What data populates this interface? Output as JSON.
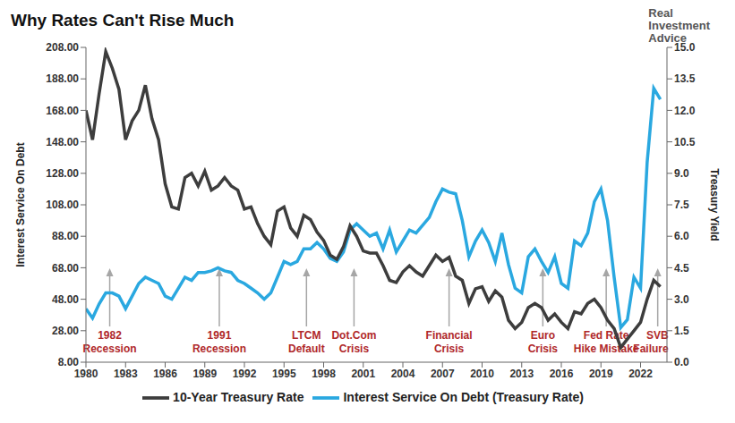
{
  "chart_data": {
    "type": "line",
    "title": "Why Rates Can't Rise Much",
    "logo": [
      "Real",
      "Investment",
      "Advice"
    ],
    "y_label": "Interest Service On Debt",
    "y2_label": "Treasury Yield",
    "grid": false,
    "legend": "bottom",
    "x": [
      1980,
      1980.5,
      1981,
      1981.5,
      1982,
      1982.5,
      1983,
      1983.5,
      1984,
      1984.5,
      1985,
      1985.5,
      1986,
      1986.5,
      1987,
      1987.5,
      1988,
      1988.5,
      1989,
      1989.5,
      1990,
      1990.5,
      1991,
      1991.5,
      1992,
      1992.5,
      1993,
      1993.5,
      1994,
      1994.5,
      1995,
      1995.5,
      1996,
      1996.5,
      1997,
      1997.5,
      1998,
      1998.5,
      1999,
      1999.5,
      2000,
      2000.5,
      2001,
      2001.5,
      2002,
      2002.5,
      2003,
      2003.5,
      2004,
      2004.5,
      2005,
      2005.5,
      2006,
      2006.5,
      2007,
      2007.5,
      2008,
      2008.5,
      2009,
      2009.5,
      2010,
      2010.5,
      2011,
      2011.5,
      2012,
      2012.5,
      2013,
      2013.5,
      2014,
      2014.5,
      2015,
      2015.5,
      2016,
      2016.5,
      2017,
      2017.5,
      2018,
      2018.5,
      2019,
      2019.5,
      2020,
      2020.5,
      2021,
      2021.5,
      2022,
      2022.5,
      2023,
      2023.5
    ],
    "series": [
      {
        "name": "Interest Service On Debt (Treasury Rate)",
        "color": "#2aa8e0",
        "values": [
          42,
          36,
          45,
          52,
          52,
          50,
          42,
          50,
          58,
          62,
          60,
          58,
          50,
          48,
          55,
          62,
          60,
          65,
          65,
          66,
          68,
          66,
          65,
          60,
          58,
          55,
          52,
          48,
          52,
          62,
          72,
          70,
          72,
          80,
          80,
          84,
          80,
          74,
          72,
          78,
          92,
          96,
          92,
          88,
          90,
          80,
          92,
          78,
          85,
          92,
          90,
          95,
          100,
          110,
          118,
          116,
          115,
          98,
          75,
          85,
          92,
          84,
          72,
          90,
          70,
          55,
          52,
          75,
          80,
          72,
          65,
          75,
          58,
          55,
          85,
          82,
          90,
          110,
          118,
          98,
          62,
          30,
          35,
          62,
          55,
          135,
          182,
          175
        ]
      },
      {
        "name": "10-Year Treasury Rate",
        "color": "#3d3d3d",
        "axis": "y2",
        "values": [
          12.0,
          10.6,
          12.8,
          14.8,
          14.0,
          13.0,
          10.6,
          11.5,
          12.0,
          13.2,
          11.6,
          10.6,
          8.5,
          7.4,
          7.3,
          8.8,
          9.0,
          8.4,
          9.1,
          8.2,
          8.4,
          8.8,
          8.4,
          8.2,
          7.3,
          7.4,
          6.6,
          6.0,
          5.6,
          7.2,
          7.4,
          6.4,
          6.0,
          7.0,
          6.8,
          6.2,
          5.8,
          5.1,
          4.9,
          5.5,
          6.5,
          6.0,
          5.3,
          5.2,
          5.2,
          4.6,
          3.9,
          3.8,
          4.3,
          4.6,
          4.3,
          4.1,
          4.6,
          5.1,
          4.8,
          5.0,
          4.1,
          3.9,
          2.8,
          3.5,
          3.6,
          2.9,
          3.4,
          3.1,
          2.0,
          1.6,
          1.9,
          2.6,
          2.8,
          2.6,
          2.0,
          2.3,
          1.9,
          1.6,
          2.4,
          2.3,
          2.8,
          3.0,
          2.6,
          2.0,
          1.6,
          0.7,
          1.1,
          1.5,
          1.9,
          3.0,
          3.9,
          3.6
        ]
      }
    ],
    "xlim": [
      1980,
      2024
    ],
    "xticks": [
      1980,
      1983,
      1986,
      1989,
      1992,
      1995,
      1998,
      2001,
      2004,
      2007,
      2010,
      2013,
      2016,
      2019,
      2022
    ],
    "ylim": [
      8,
      208
    ],
    "yticks": [
      {
        "value": 8,
        "label": "8.00"
      },
      {
        "value": 28,
        "label": "28.00"
      },
      {
        "value": 48,
        "label": "48.00"
      },
      {
        "value": 68,
        "label": "68.00"
      },
      {
        "value": 88,
        "label": "88.00"
      },
      {
        "value": 108,
        "label": "108.00"
      },
      {
        "value": 128,
        "label": "128.00"
      },
      {
        "value": 148,
        "label": "148.00"
      },
      {
        "value": 168,
        "label": "168.00"
      },
      {
        "value": 188,
        "label": "188.00"
      },
      {
        "value": 208,
        "label": "208.00"
      }
    ],
    "y2lim": [
      0,
      15
    ],
    "y2ticks": [
      {
        "value": 0,
        "label": "0.0"
      },
      1.5,
      {
        "value": 3,
        "label": "3.0"
      },
      4.5,
      {
        "value": 6,
        "label": "6.0"
      },
      7.5,
      {
        "value": 9,
        "label": "9.0"
      },
      10.5,
      {
        "value": 12,
        "label": "12.0"
      },
      13.5,
      {
        "value": 15,
        "label": "15.0"
      }
    ],
    "annotations": [
      {
        "x": 1981.8,
        "text": [
          "1982",
          "Recession"
        ]
      },
      {
        "x": 1990.1,
        "text": [
          "1991",
          "Recession"
        ]
      },
      {
        "x": 1996.7,
        "text": [
          "LTCM",
          "Default"
        ]
      },
      {
        "x": 2000.3,
        "text": [
          "Dot.Com",
          "Crisis"
        ]
      },
      {
        "x": 2007.5,
        "text": [
          "Financial",
          "Crisis"
        ]
      },
      {
        "x": 2014.6,
        "text": [
          "Euro",
          "Crisis"
        ]
      },
      {
        "x": 2019.4,
        "text": [
          "Fed Rate",
          "Hike Mistake"
        ]
      },
      {
        "x": 2023.3,
        "text": [
          "SVB",
          "Failure"
        ]
      }
    ]
  }
}
